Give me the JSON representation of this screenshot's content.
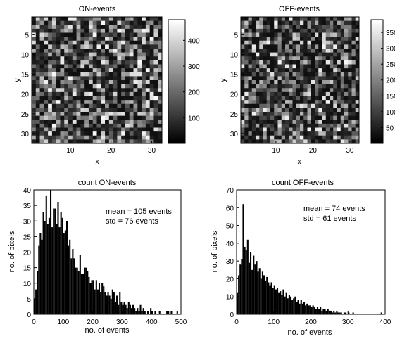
{
  "chart_data": [
    {
      "type": "heatmap",
      "title": "ON-events",
      "xlabel": "x",
      "ylabel": "y",
      "xlim": [
        0.5,
        32.5
      ],
      "ylim": [
        0.5,
        32.5
      ],
      "xticks": [
        10,
        20,
        30
      ],
      "yticks": [
        5,
        10,
        15,
        20,
        25,
        30
      ],
      "grid_size": [
        32,
        32
      ],
      "colormap": "gray",
      "colorbar": {
        "ticks": [
          100,
          200,
          300,
          400
        ],
        "range": [
          0,
          480
        ],
        "position": "right"
      }
    },
    {
      "type": "heatmap",
      "title": "OFF-events",
      "xlabel": "x",
      "ylabel": "y",
      "xlim": [
        0.5,
        32.5
      ],
      "ylim": [
        0.5,
        32.5
      ],
      "xticks": [
        10,
        20,
        30
      ],
      "yticks": [
        5,
        10,
        15,
        20,
        25,
        30
      ],
      "grid_size": [
        32,
        32
      ],
      "colormap": "gray",
      "colorbar": {
        "ticks": [
          50,
          100,
          150,
          200,
          250,
          300,
          350
        ],
        "range": [
          0,
          390
        ],
        "position": "right"
      }
    },
    {
      "type": "bar",
      "subtype": "histogram",
      "title": "count ON-events",
      "xlabel": "no. of events",
      "ylabel": "no. of pixels",
      "xlim": [
        0,
        500
      ],
      "ylim": [
        0,
        40
      ],
      "xticks": [
        0,
        100,
        200,
        300,
        400,
        500
      ],
      "yticks": [
        0,
        5,
        10,
        15,
        20,
        25,
        30,
        35,
        40
      ],
      "annotations": [
        "mean = 105 events",
        "std = 76 events"
      ],
      "bin_width": 5,
      "bin_start": 0,
      "values": [
        5,
        8,
        14,
        22,
        26,
        24,
        33,
        30,
        38,
        29,
        31,
        40,
        28,
        34,
        34,
        29,
        36,
        28,
        33,
        31,
        26,
        27,
        30,
        22,
        24,
        18,
        21,
        18,
        15,
        15,
        14,
        19,
        13,
        13,
        15,
        15,
        14,
        12,
        10,
        11,
        11,
        8,
        11,
        8,
        10,
        7,
        10,
        9,
        7,
        6,
        7,
        6,
        5,
        8,
        7,
        4,
        6,
        3,
        7,
        4,
        3,
        4,
        3,
        2,
        4,
        3,
        2,
        3,
        2,
        1,
        2,
        1,
        3,
        1,
        2,
        1,
        0,
        1,
        0,
        2,
        1,
        0,
        1,
        0,
        0,
        1,
        0,
        0,
        0,
        0,
        1,
        1,
        0,
        1,
        0,
        0,
        0,
        1,
        0,
        0
      ]
    },
    {
      "type": "bar",
      "subtype": "histogram",
      "title": "count OFF-events",
      "xlabel": "no. of events",
      "ylabel": "no. of pixels",
      "xlim": [
        0,
        400
      ],
      "ylim": [
        0,
        70
      ],
      "xticks": [
        0,
        100,
        200,
        300,
        400
      ],
      "yticks": [
        0,
        10,
        20,
        30,
        40,
        50,
        60,
        70
      ],
      "annotations": [
        "mean = 74 events",
        "std = 61 events"
      ],
      "bin_width": 4,
      "bin_start": 0,
      "values": [
        12,
        22,
        28,
        31,
        62,
        38,
        36,
        42,
        29,
        35,
        25,
        33,
        28,
        30,
        24,
        26,
        20,
        24,
        22,
        19,
        21,
        18,
        16,
        18,
        15,
        16,
        14,
        15,
        12,
        13,
        11,
        14,
        10,
        12,
        9,
        11,
        10,
        8,
        9,
        10,
        7,
        8,
        6,
        8,
        6,
        7,
        5,
        6,
        5,
        5,
        4,
        5,
        4,
        3,
        4,
        3,
        4,
        2,
        3,
        3,
        2,
        3,
        2,
        2,
        1,
        2,
        1,
        2,
        1,
        1,
        1,
        0,
        1,
        1,
        0,
        1,
        0,
        0,
        1,
        0,
        0,
        0,
        0,
        0,
        0,
        0,
        0,
        0,
        0,
        0,
        0,
        0,
        0,
        0,
        0,
        0,
        0,
        1,
        0,
        0
      ]
    }
  ]
}
